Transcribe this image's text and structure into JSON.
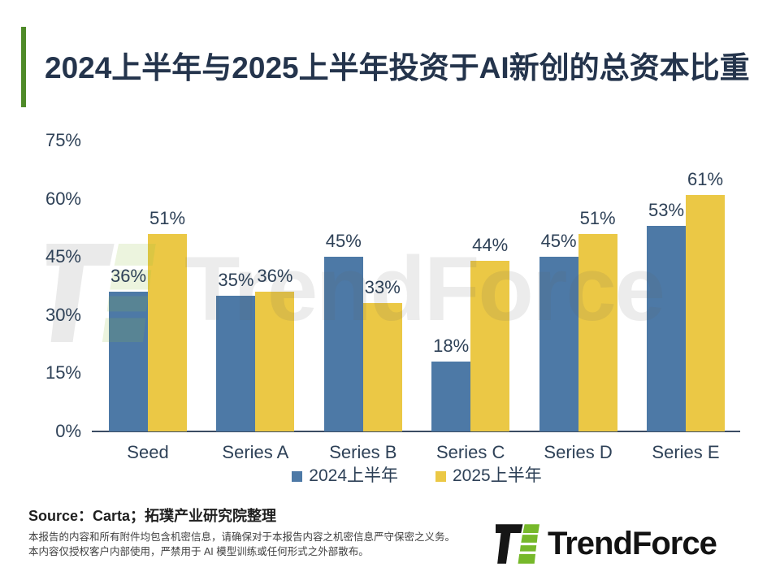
{
  "title": "2024上半年与2025上半年投资于AI新创的总资本比重",
  "accent_color": "#4e8a28",
  "chart_data": {
    "type": "bar",
    "title": "2024上半年与2025上半年投资于AI新创的总资本比重",
    "categories": [
      "Seed",
      "Series A",
      "Series B",
      "Series C",
      "Series D",
      "Series E"
    ],
    "series": [
      {
        "name": "2024上半年",
        "color": "#4d79a6",
        "values": [
          36,
          35,
          45,
          18,
          45,
          53
        ]
      },
      {
        "name": "2025上半年",
        "color": "#ebc845",
        "values": [
          51,
          36,
          33,
          44,
          51,
          61
        ]
      }
    ],
    "xlabel": "",
    "ylabel": "",
    "ylim": [
      0,
      75
    ],
    "yticks": [
      0,
      15,
      30,
      45,
      60,
      75
    ],
    "tick_suffix": "%",
    "data_label_suffix": "%",
    "grid": false,
    "legend_position": "bottom",
    "text_color": "#2e4157"
  },
  "watermark": {
    "text": "TrendForce"
  },
  "source": "Source：Carta；拓璞产业研究院整理",
  "disclaimer": [
    "本报告的内容和所有附件均包含机密信息，请确保对于本报告内容之机密信息严守保密之义务。",
    "本内容仅授权客户内部使用，严禁用于 AI 模型训练或任何形式之外部散布。"
  ],
  "logo": {
    "text": "TrendForce"
  }
}
